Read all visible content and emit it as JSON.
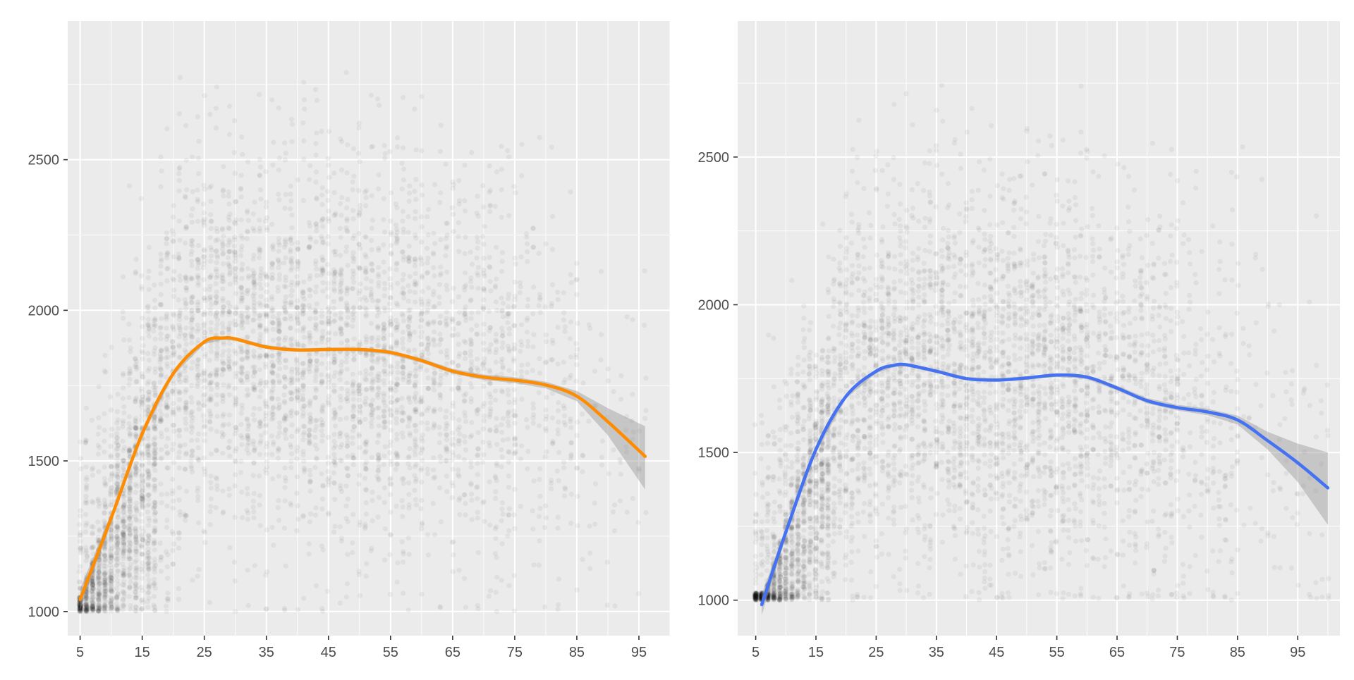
{
  "chart_data": [
    {
      "type": "scatter",
      "title": "",
      "xlabel": "",
      "ylabel": "",
      "xlim": [
        3,
        100
      ],
      "ylim": [
        920,
        2960
      ],
      "grid": true,
      "x_ticks": [
        5,
        15,
        25,
        35,
        45,
        55,
        65,
        75,
        85,
        95
      ],
      "y_ticks": [
        1000,
        1500,
        2000,
        2500
      ],
      "y_minor": [
        1250,
        1750,
        2250,
        2750
      ],
      "colors": {
        "smooth": "#FF8C00",
        "band": "#999999",
        "points": "#1a1a1a",
        "panel": "#EBEBEB"
      },
      "series": [
        {
          "kind": "points",
          "description": "dense overplotted semi-transparent grey points",
          "x_range": [
            5,
            96
          ],
          "y_range": [
            1000,
            2800
          ]
        },
        {
          "kind": "smooth",
          "x": [
            5,
            10,
            15,
            20,
            25,
            28,
            30,
            35,
            40,
            45,
            50,
            55,
            60,
            65,
            70,
            75,
            80,
            85,
            90,
            96
          ],
          "y": [
            1040,
            1310,
            1590,
            1790,
            1895,
            1908,
            1905,
            1878,
            1868,
            1870,
            1870,
            1860,
            1833,
            1798,
            1778,
            1768,
            1752,
            1715,
            1630,
            1515
          ],
          "band_upper": [
            1075,
            1325,
            1600,
            1797,
            1902,
            1914,
            1911,
            1884,
            1874,
            1876,
            1876,
            1867,
            1840,
            1806,
            1787,
            1778,
            1763,
            1732,
            1675,
            1615
          ],
          "band_lower": [
            1005,
            1295,
            1580,
            1783,
            1888,
            1902,
            1899,
            1872,
            1862,
            1864,
            1864,
            1853,
            1826,
            1790,
            1769,
            1758,
            1741,
            1698,
            1585,
            1405
          ]
        }
      ]
    },
    {
      "type": "scatter",
      "title": "",
      "xlabel": "",
      "ylabel": "",
      "xlim": [
        2,
        102
      ],
      "ylim": [
        880,
        2960
      ],
      "grid": true,
      "x_ticks": [
        5,
        15,
        25,
        35,
        45,
        55,
        65,
        75,
        85,
        95
      ],
      "y_ticks": [
        1000,
        1500,
        2000,
        2500
      ],
      "y_minor": [
        1250,
        1750,
        2250,
        2750
      ],
      "colors": {
        "smooth": "#4472F2",
        "band": "#999999",
        "points": "#1a1a1a",
        "panel": "#EBEBEB"
      },
      "series": [
        {
          "kind": "points",
          "description": "dense overplotted semi-transparent grey points",
          "x_range": [
            5,
            100
          ],
          "y_range": [
            1000,
            2750
          ]
        },
        {
          "kind": "smooth",
          "x": [
            6,
            10,
            15,
            20,
            25,
            28,
            30,
            35,
            40,
            45,
            50,
            55,
            60,
            65,
            70,
            75,
            80,
            85,
            90,
            95,
            100
          ],
          "y": [
            985,
            1230,
            1510,
            1690,
            1775,
            1795,
            1797,
            1775,
            1750,
            1745,
            1752,
            1762,
            1755,
            1718,
            1675,
            1652,
            1637,
            1610,
            1540,
            1465,
            1380
          ],
          "band_upper": [
            1020,
            1245,
            1520,
            1697,
            1782,
            1801,
            1803,
            1781,
            1756,
            1751,
            1758,
            1768,
            1762,
            1726,
            1684,
            1662,
            1648,
            1625,
            1570,
            1530,
            1500
          ],
          "band_lower": [
            950,
            1215,
            1500,
            1683,
            1768,
            1789,
            1791,
            1769,
            1744,
            1739,
            1746,
            1756,
            1748,
            1710,
            1666,
            1642,
            1626,
            1595,
            1510,
            1400,
            1255
          ]
        }
      ]
    }
  ]
}
